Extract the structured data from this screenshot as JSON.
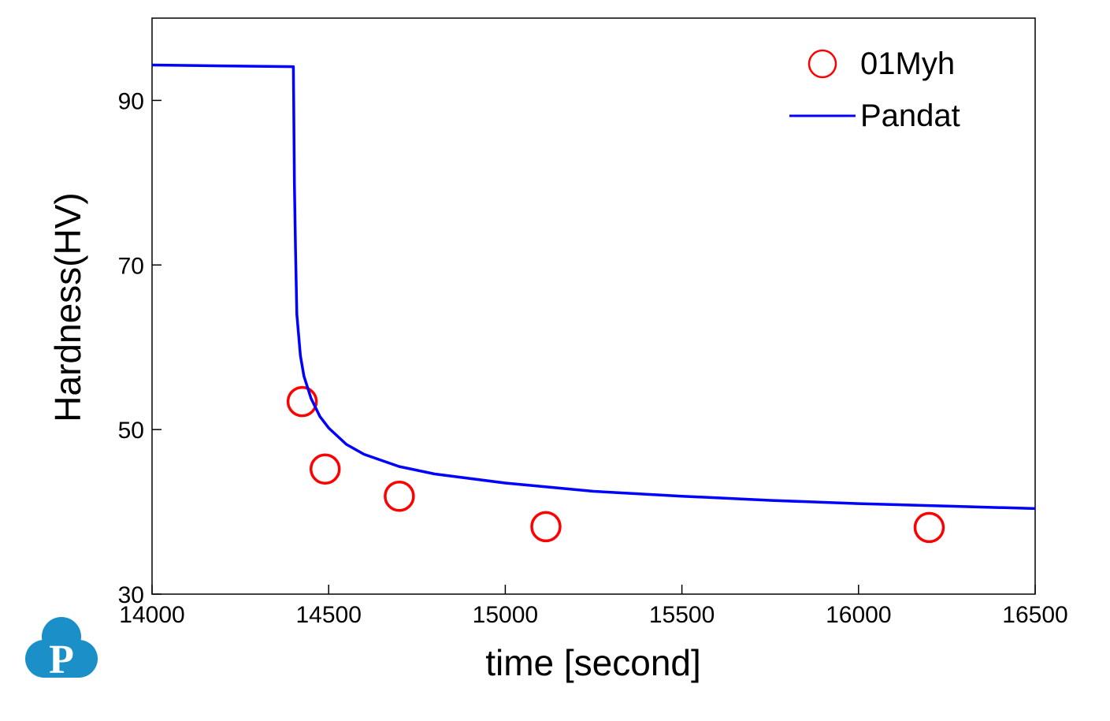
{
  "chart_data": {
    "type": "line",
    "xlabel": "time [second]",
    "ylabel": "Hardness(HV)",
    "xlim": [
      14000,
      16500
    ],
    "ylim": [
      30,
      100
    ],
    "xticks": [
      "14000",
      "14500",
      "15000",
      "15500",
      "16000",
      "16500"
    ],
    "yticks": [
      "30",
      "50",
      "70",
      "90"
    ],
    "grid": false,
    "legend_position": "top-right",
    "series": [
      {
        "name": "01Myh",
        "kind": "scatter",
        "color": "#ff0000",
        "x": [
          14425,
          14490,
          14700,
          15115,
          16200
        ],
        "y": [
          53.4,
          45.2,
          41.9,
          38.2,
          38.1
        ]
      },
      {
        "name": "Pandat",
        "kind": "line",
        "color": "#0000ff",
        "x": [
          14000,
          14200,
          14400,
          14401,
          14403,
          14406,
          14410,
          14420,
          14430,
          14450,
          14475,
          14500,
          14550,
          14600,
          14700,
          14800,
          15000,
          15250,
          15500,
          15750,
          16000,
          16250,
          16500
        ],
        "y": [
          94.3,
          94.2,
          94.1,
          90.0,
          80.0,
          72.0,
          64.0,
          59.0,
          56.5,
          53.8,
          51.6,
          50.2,
          48.2,
          47.0,
          45.5,
          44.6,
          43.5,
          42.5,
          41.9,
          41.4,
          41.0,
          40.7,
          40.4
        ]
      }
    ]
  },
  "logo": {
    "letter": "P",
    "color": "#1a8fc8"
  }
}
